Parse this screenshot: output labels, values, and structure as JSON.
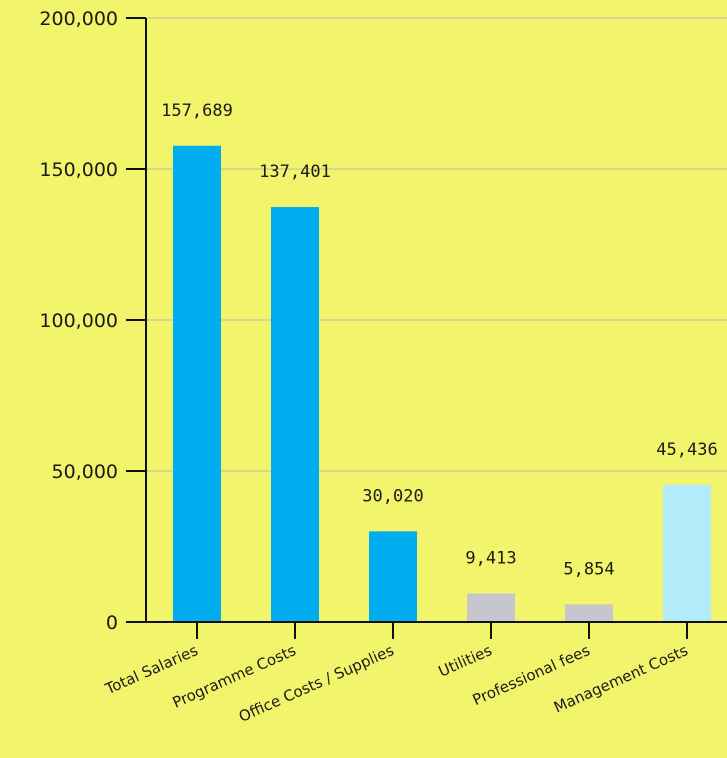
{
  "chart_data": {
    "type": "bar",
    "title": "",
    "xlabel": "",
    "ylabel": "",
    "categories": [
      "Total Salaries",
      "Programme Costs",
      "Office Costs / Supplies",
      "Utilities",
      "Professional fees",
      "Management Costs"
    ],
    "values": [
      157689,
      137401,
      30020,
      9413,
      5854,
      45436
    ],
    "value_labels": [
      "157,689",
      "137,401",
      "30,020",
      "9,413",
      "5,854",
      "45,436"
    ],
    "bar_colors": [
      "#00aeef",
      "#00aeef",
      "#00aeef",
      "#c6c6cf",
      "#c6c6cf",
      "#b4ebfb"
    ],
    "ylim": [
      0,
      200000
    ],
    "yticks": [
      0,
      50000,
      100000,
      150000,
      200000
    ],
    "ytick_labels": [
      "0",
      "50,000",
      "100,000",
      "150,000",
      "200,000"
    ],
    "grid": true,
    "legend": "none"
  },
  "colors": {
    "background": "#f2f46b",
    "gridline": "#c8c8a0",
    "axis": "#111111"
  }
}
